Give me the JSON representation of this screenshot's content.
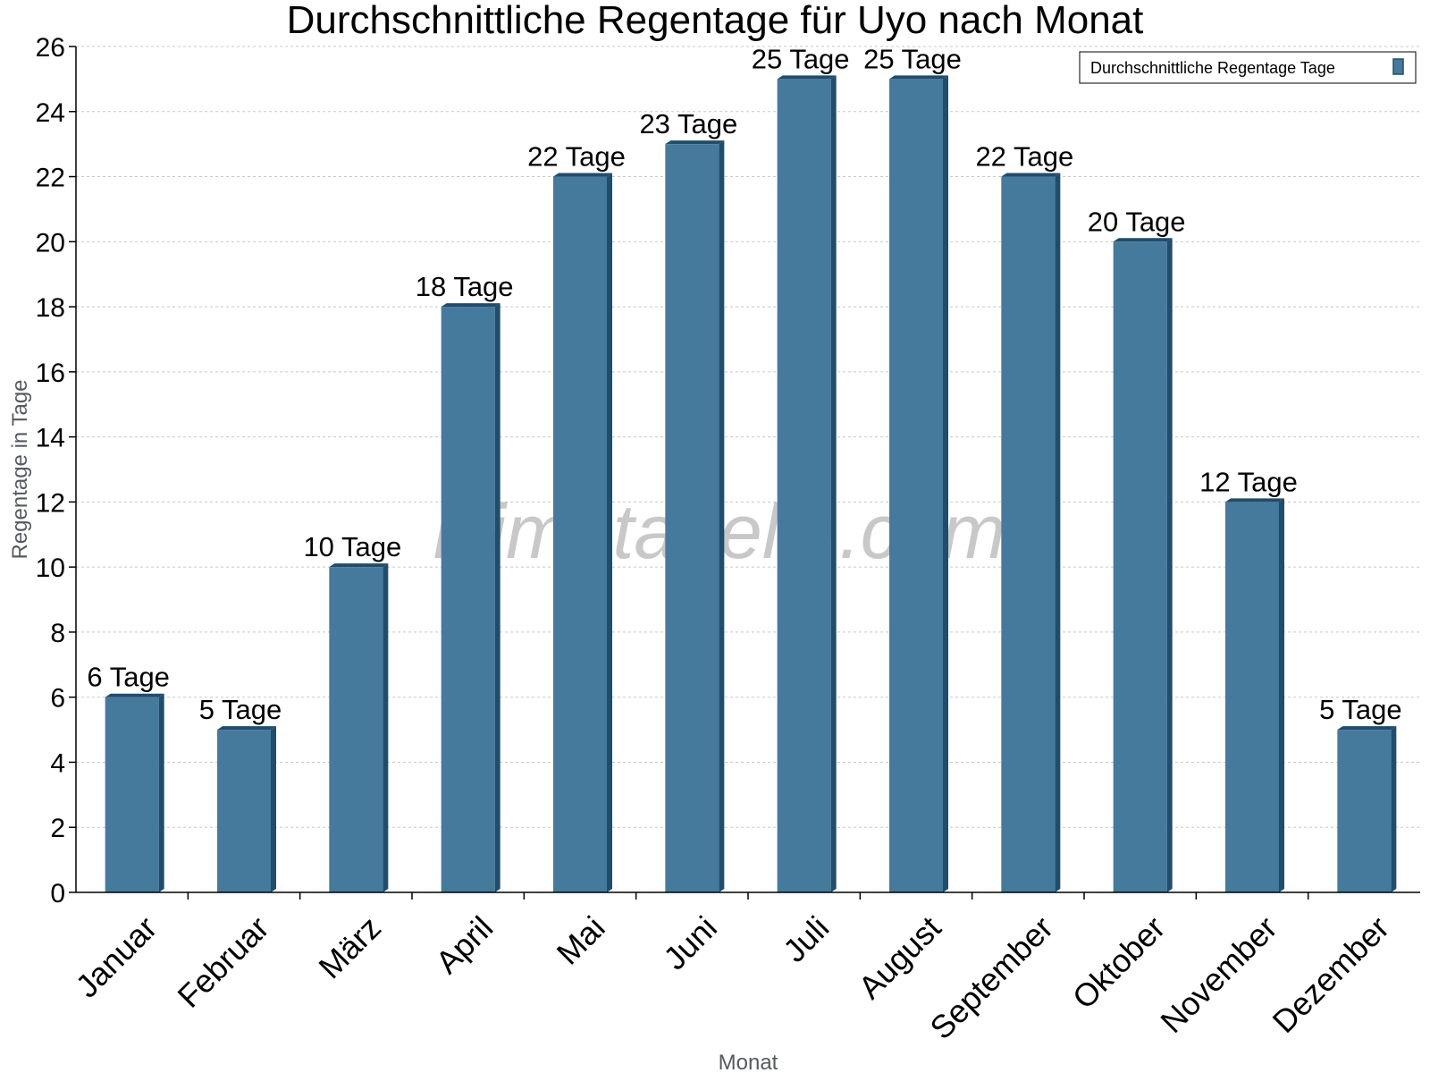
{
  "chart_data": {
    "type": "bar",
    "title": "Durchschnittliche Regentage für Uyo nach Monat",
    "xlabel": "Monat",
    "ylabel": "Regentage in Tage",
    "categories": [
      "Januar",
      "Februar",
      "März",
      "April",
      "Mai",
      "Juni",
      "Juli",
      "August",
      "September",
      "Oktober",
      "November",
      "Dezember"
    ],
    "series": [
      {
        "name": "Durchschnittliche Regentage Tage",
        "values": [
          6,
          5,
          10,
          18,
          22,
          23,
          25,
          25,
          22,
          20,
          12,
          5
        ],
        "data_labels": [
          "6 Tage",
          "5 Tage",
          "10 Tage",
          "18 Tage",
          "22 Tage",
          "23 Tage",
          "25 Tage",
          "25 Tage",
          "22 Tage",
          "20 Tage",
          "12 Tage",
          "5 Tage"
        ],
        "color": "#457a9d",
        "shade_color": "#1e4d6e"
      }
    ],
    "ylim": [
      0,
      26
    ],
    "yticks": [
      "0",
      "2",
      "4",
      "6",
      "8",
      "10",
      "12",
      "14",
      "16",
      "18",
      "20",
      "22",
      "24",
      "26"
    ],
    "grid": true,
    "legend_position": "top-right",
    "watermark": "klimatabelle.com"
  }
}
